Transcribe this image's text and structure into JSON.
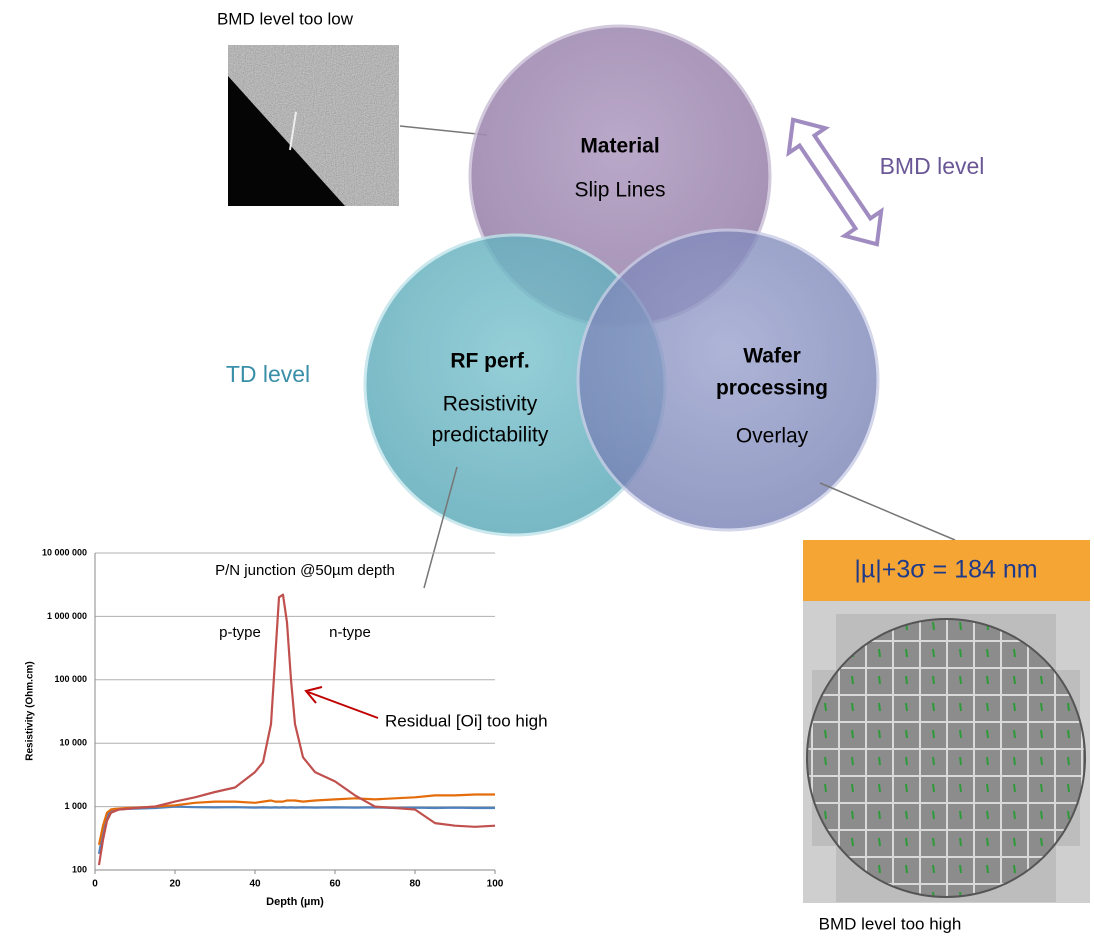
{
  "diagram": {
    "image_labels": [
      "BMD level too low",
      "BMD level too high"
    ],
    "side_labels": {
      "bmd": "BMD level",
      "td": "TD level"
    },
    "circles": [
      {
        "title_lines": [
          "Material"
        ],
        "lines": [
          "Slip Lines"
        ]
      },
      {
        "title_lines": [
          "RF perf."
        ],
        "lines": [
          "Resistivity",
          "predictability"
        ]
      },
      {
        "title_lines": [
          "Wafer",
          "processing"
        ],
        "lines": [
          "Overlay"
        ]
      }
    ],
    "overlay_metric": "|µ|+3σ = 184 nm"
  },
  "chart_data": {
    "type": "line",
    "x": [
      1,
      2,
      3,
      4,
      5,
      6,
      8,
      10,
      15,
      20,
      25,
      30,
      35,
      40,
      42,
      44,
      45,
      46,
      47,
      48,
      49,
      50,
      52,
      55,
      60,
      65,
      70,
      75,
      80,
      85,
      90,
      95,
      100
    ],
    "series": [
      {
        "color": "#c0504d",
        "values": [
          120,
          300,
          600,
          800,
          850,
          900,
          920,
          950,
          1000,
          1200,
          1400,
          1700,
          2000,
          3500,
          5000,
          20000,
          200000,
          2000000,
          2200000,
          800000,
          100000,
          20000,
          6000,
          3500,
          2500,
          1500,
          1000,
          950,
          900,
          550,
          500,
          480,
          500
        ]
      },
      {
        "color": "#e46c0a",
        "values": [
          250,
          500,
          800,
          900,
          920,
          930,
          950,
          960,
          1000,
          1050,
          1150,
          1200,
          1200,
          1150,
          1200,
          1250,
          1200,
          1200,
          1200,
          1250,
          1250,
          1250,
          1200,
          1250,
          1300,
          1350,
          1300,
          1350,
          1400,
          1500,
          1500,
          1550,
          1550
        ]
      },
      {
        "color": "#4f81bd",
        "values": [
          180,
          400,
          700,
          850,
          880,
          900,
          920,
          930,
          950,
          1000,
          980,
          970,
          980,
          960,
          970,
          960,
          970,
          960,
          970,
          960,
          970,
          960,
          970,
          960,
          970,
          960,
          970,
          950,
          960,
          950,
          960,
          950,
          950
        ]
      }
    ],
    "xlim": [
      0,
      100
    ],
    "ylim": [
      100,
      10000000
    ],
    "log_y": true,
    "grid": true,
    "xticks": [
      0,
      20,
      40,
      60,
      80,
      100
    ],
    "yticks": [
      {
        "value": 100,
        "label": "100"
      },
      {
        "value": 1000,
        "label": "1 000"
      },
      {
        "value": 10000,
        "label": "10 000"
      },
      {
        "value": 100000,
        "label": "100 000"
      },
      {
        "value": 1000000,
        "label": "1 000 000"
      },
      {
        "value": 10000000,
        "label": "10 000 000"
      }
    ],
    "x_label": "Depth (µm)",
    "y_label": "Resistivity (Ohm.cm)",
    "annotations": [
      "P/N junction @50µm depth",
      "p-type",
      "n-type",
      "Residual [Oi]  too high"
    ]
  }
}
